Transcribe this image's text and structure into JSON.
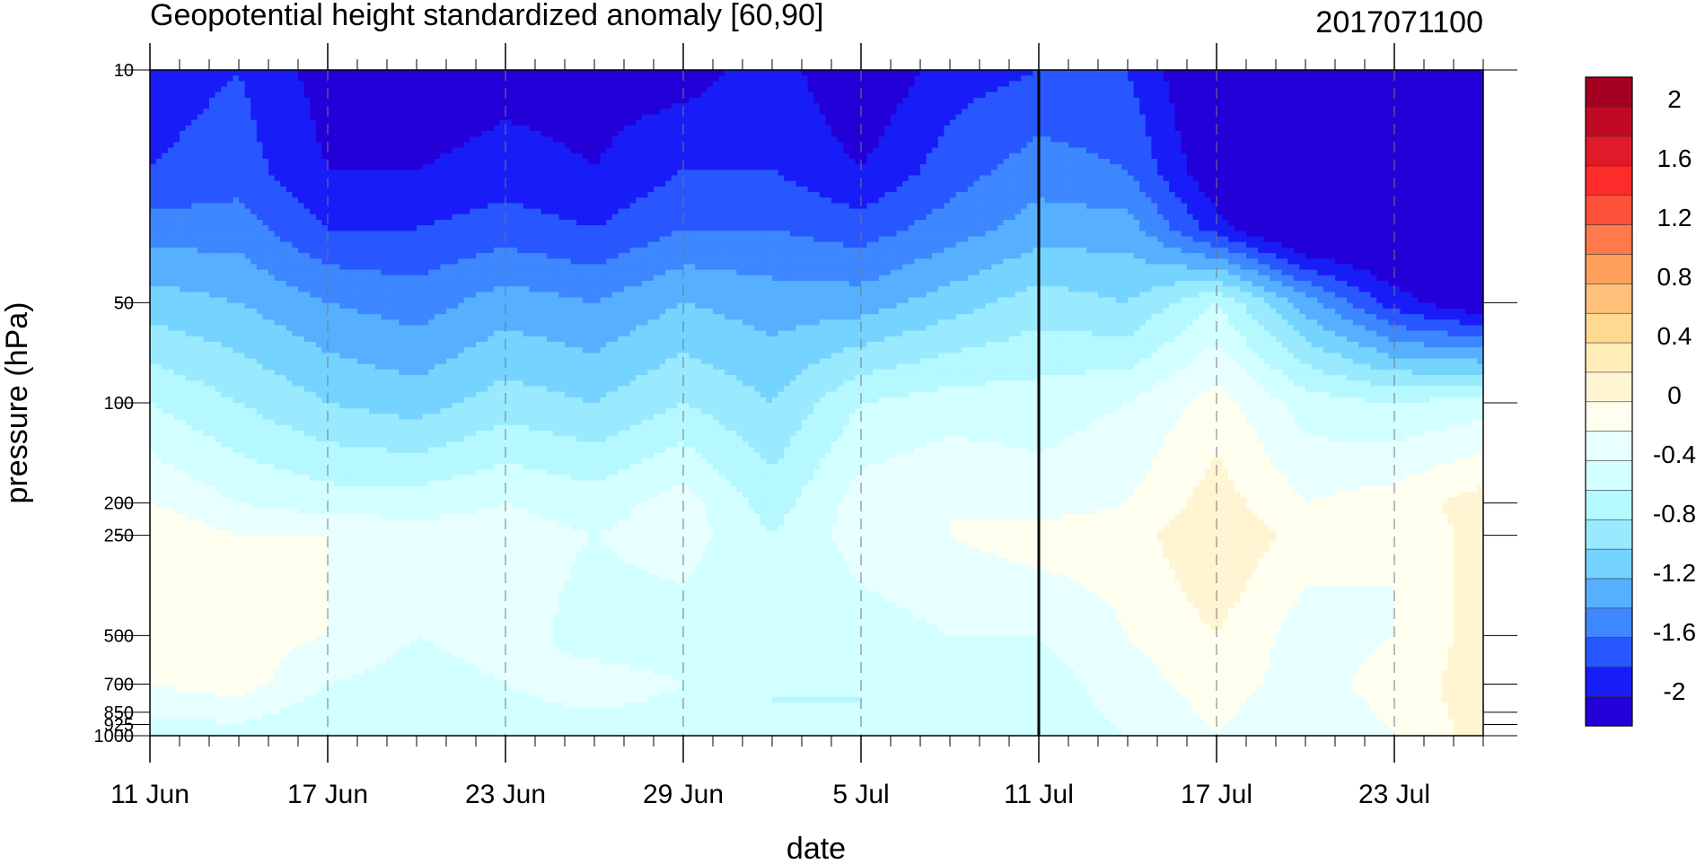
{
  "chart_data": {
    "type": "heatmap",
    "title": "Geopotential height standardized anomaly [60,90]",
    "subtitle_right": "2017071100",
    "xlabel": "date",
    "ylabel": "pressure (hPa)",
    "y_scale": "log",
    "y_reversed": true,
    "ylim": [
      10,
      1000
    ],
    "xlim": [
      "2017-06-11",
      "2017-07-26"
    ],
    "x_tick_labels": [
      "11 Jun",
      "17 Jun",
      "23 Jun",
      "29 Jun",
      "5 Jul",
      "11 Jul",
      "17 Jul",
      "23 Jul"
    ],
    "x_tick_dates": [
      "2017-06-11",
      "2017-06-17",
      "2017-06-23",
      "2017-06-29",
      "2017-07-05",
      "2017-07-11",
      "2017-07-17",
      "2017-07-23"
    ],
    "y_ticks": [
      10,
      50,
      100,
      200,
      250,
      500,
      700,
      850,
      925,
      1000
    ],
    "y_tick_labels": [
      "10",
      "50",
      "100",
      "200",
      "250",
      "500",
      "700",
      "850",
      "925",
      "1000"
    ],
    "vertical_line_date": "2017-07-11",
    "grid": "dashed vertical lines at labeled dates",
    "colorbar": {
      "labels": [
        "2",
        "1.6",
        "1.2",
        "0.8",
        "0.4",
        "0",
        "-0.4",
        "-0.8",
        "-1.2",
        "-1.6",
        "-2"
      ],
      "levels": [
        -2.2,
        -2.0,
        -1.8,
        -1.6,
        -1.4,
        -1.2,
        -1.0,
        -0.8,
        -0.6,
        -0.4,
        -0.2,
        0,
        0.2,
        0.4,
        0.6,
        0.8,
        1.0,
        1.2,
        1.4,
        1.6,
        1.8,
        2.0,
        2.2
      ],
      "colors_bottom_to_top": [
        "#2400d8",
        "#181cf7",
        "#2857ff",
        "#3d87ff",
        "#56b0ff",
        "#75d3ff",
        "#99eaff",
        "#b5f8ff",
        "#d2ffff",
        "#e8ffff",
        "#fffff0",
        "#fff5d2",
        "#ffecb8",
        "#ffd98f",
        "#ffc07a",
        "#ffa05a",
        "#ff7a4a",
        "#ff523a",
        "#ff2b2b",
        "#e01a2a",
        "#c00a25",
        "#a50021"
      ]
    },
    "x_days": [
      0,
      3,
      6,
      9,
      12,
      15,
      18,
      21,
      24,
      27,
      30,
      33,
      36,
      39,
      42,
      45
    ],
    "y_levels_hpa": [
      10,
      20,
      30,
      50,
      100,
      200,
      250,
      500,
      700,
      1000
    ],
    "z": [
      [
        -1.9,
        -1.8,
        -2.1,
        -2.2,
        -2.1,
        -2.1,
        -2.1,
        -1.9,
        -2.2,
        -1.9,
        -1.8,
        -1.8,
        -2.3,
        -2.4,
        -2.4,
        -2.4
      ],
      [
        -1.8,
        -1.7,
        -2.0,
        -2.0,
        -1.9,
        -2.0,
        -1.8,
        -1.8,
        -2.0,
        -1.7,
        -1.5,
        -1.6,
        -2.2,
        -2.4,
        -2.4,
        -2.4
      ],
      [
        -1.5,
        -1.5,
        -1.8,
        -1.8,
        -1.7,
        -1.8,
        -1.6,
        -1.6,
        -1.7,
        -1.5,
        -1.3,
        -1.3,
        -1.9,
        -2.4,
        -2.4,
        -2.4
      ],
      [
        -1.1,
        -1.2,
        -1.4,
        -1.5,
        -1.3,
        -1.4,
        -1.2,
        -1.3,
        -1.3,
        -1.1,
        -0.9,
        -1.0,
        -0.6,
        -1.3,
        -1.9,
        -2.2
      ],
      [
        -0.6,
        -0.8,
        -1.0,
        -1.1,
        -0.9,
        -1.0,
        -0.8,
        -1.0,
        -0.6,
        -0.5,
        -0.5,
        -0.4,
        -0.1,
        -0.5,
        -0.6,
        -0.5
      ],
      [
        -0.2,
        -0.4,
        -0.5,
        -0.5,
        -0.4,
        -0.5,
        -0.3,
        -0.7,
        -0.3,
        -0.2,
        -0.3,
        -0.2,
        0.1,
        -0.2,
        -0.1,
        0.1
      ],
      [
        0.0,
        -0.2,
        -0.2,
        -0.3,
        -0.3,
        -0.4,
        -0.3,
        -0.6,
        -0.3,
        -0.2,
        -0.1,
        -0.1,
        0.2,
        -0.1,
        -0.2,
        0.1
      ],
      [
        -0.1,
        -0.1,
        -0.2,
        -0.4,
        -0.3,
        -0.5,
        -0.5,
        -0.6,
        -0.5,
        -0.4,
        -0.4,
        -0.2,
        0.0,
        -0.3,
        -0.2,
        0.1
      ],
      [
        -0.2,
        -0.1,
        -0.4,
        -0.5,
        -0.4,
        -0.3,
        -0.4,
        -0.6,
        -0.6,
        -0.5,
        -0.5,
        -0.3,
        -0.1,
        -0.3,
        -0.1,
        0.1
      ],
      [
        -0.5,
        -0.5,
        -0.6,
        -0.5,
        -0.5,
        -0.5,
        -0.5,
        -0.6,
        -0.6,
        -0.6,
        -0.5,
        -0.4,
        -0.2,
        -0.4,
        -0.2,
        0.1
      ]
    ]
  }
}
